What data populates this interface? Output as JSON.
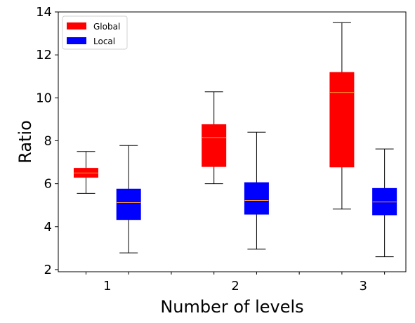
{
  "chart_data": {
    "type": "box",
    "xlabel": "Number of levels",
    "ylabel": "Ratio",
    "ylim": [
      1.9,
      14
    ],
    "yticks": [
      2,
      4,
      6,
      8,
      10,
      12,
      14
    ],
    "categories": [
      "1",
      "2",
      "3"
    ],
    "grid": false,
    "legend_position": "top-left",
    "series": [
      {
        "name": "Global",
        "color": "#ff0000",
        "boxes": [
          {
            "category": "1",
            "whisker_low": 5.55,
            "q1": 6.3,
            "median": 6.5,
            "q3": 6.72,
            "whisker_high": 7.5
          },
          {
            "category": "2",
            "whisker_low": 6.0,
            "q1": 6.8,
            "median": 8.15,
            "q3": 8.75,
            "whisker_high": 10.28
          },
          {
            "category": "3",
            "whisker_low": 4.82,
            "q1": 6.78,
            "median": 10.25,
            "q3": 11.18,
            "whisker_high": 13.5
          }
        ]
      },
      {
        "name": "Local",
        "color": "#0000ff",
        "boxes": [
          {
            "category": "1",
            "whisker_low": 2.78,
            "q1": 4.33,
            "median": 5.12,
            "q3": 5.75,
            "whisker_high": 7.78
          },
          {
            "category": "2",
            "whisker_low": 2.95,
            "q1": 4.58,
            "median": 5.22,
            "q3": 6.05,
            "whisker_high": 8.4
          },
          {
            "category": "3",
            "whisker_low": 2.6,
            "q1": 4.55,
            "median": 5.15,
            "q3": 5.78,
            "whisker_high": 7.62
          }
        ]
      }
    ],
    "median_color": "#ff9a2e"
  }
}
